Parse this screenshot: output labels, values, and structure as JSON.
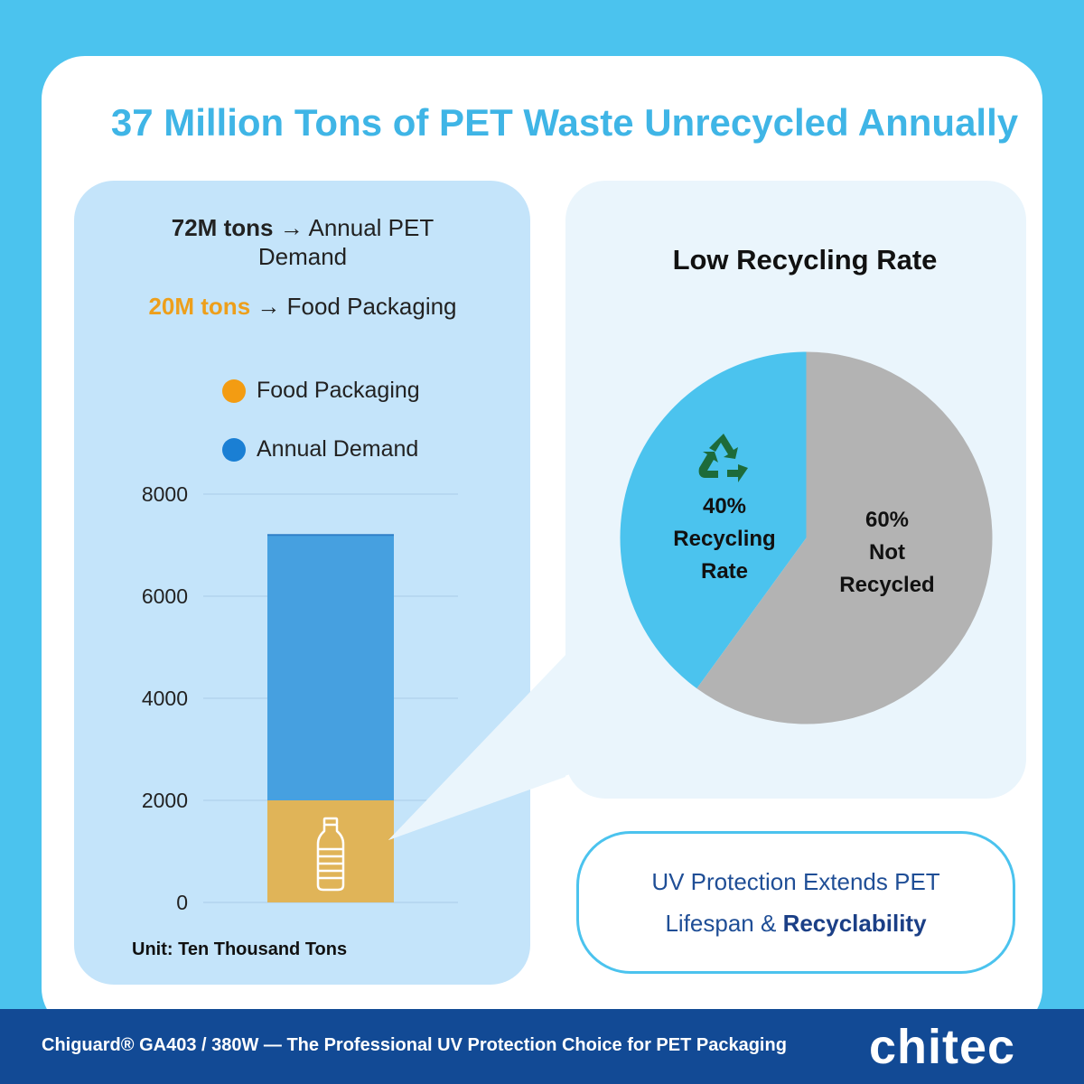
{
  "title": "37 Million Tons of PET Waste Unrecycled Annually",
  "left": {
    "line1_bold": "72M tons",
    "line1_rest": "→ Annual PET Demand",
    "line2_bold": "20M tons",
    "line2_rest": "→ Food Packaging",
    "legend": [
      {
        "label": "Food Packaging",
        "color": "#f39c12"
      },
      {
        "label": "Annual Demand",
        "color": "#1a7fd4"
      }
    ],
    "unit": "Unit: Ten Thousand Tons"
  },
  "right": {
    "pie_title": "Low Recycling Rate",
    "recycled_label": [
      "40%",
      "Recycling",
      "Rate"
    ],
    "not_recycled_label": [
      "60%",
      "Not",
      "Recycled"
    ]
  },
  "uv_box": {
    "text_line1": "UV Protection Extends PET",
    "text_line2_prefix": "Lifespan &",
    "text_line2_strong": "Recyclability"
  },
  "footer": {
    "text": "Chiguard® GA403 / 380W — The Professional UV Protection Choice for PET Packaging",
    "logo": "chitec"
  },
  "chart_data": [
    {
      "type": "bar",
      "stacked": true,
      "categories": [
        ""
      ],
      "series": [
        {
          "name": "Food Packaging",
          "values": [
            2000
          ],
          "color": "#e0b458"
        },
        {
          "name": "Annual Demand",
          "values": [
            5200
          ],
          "color": "#46a0e0"
        }
      ],
      "yticks": [
        0,
        2000,
        4000,
        6000,
        8000
      ],
      "ylim": [
        0,
        8000
      ],
      "grid": true,
      "unit": "Unit: Ten Thousand Tons"
    },
    {
      "type": "pie",
      "labels": [
        "Recycling Rate",
        "Not Recycled"
      ],
      "values": [
        40,
        60
      ],
      "colors": [
        "#4bc3ee",
        "#b3b3b3"
      ]
    }
  ]
}
